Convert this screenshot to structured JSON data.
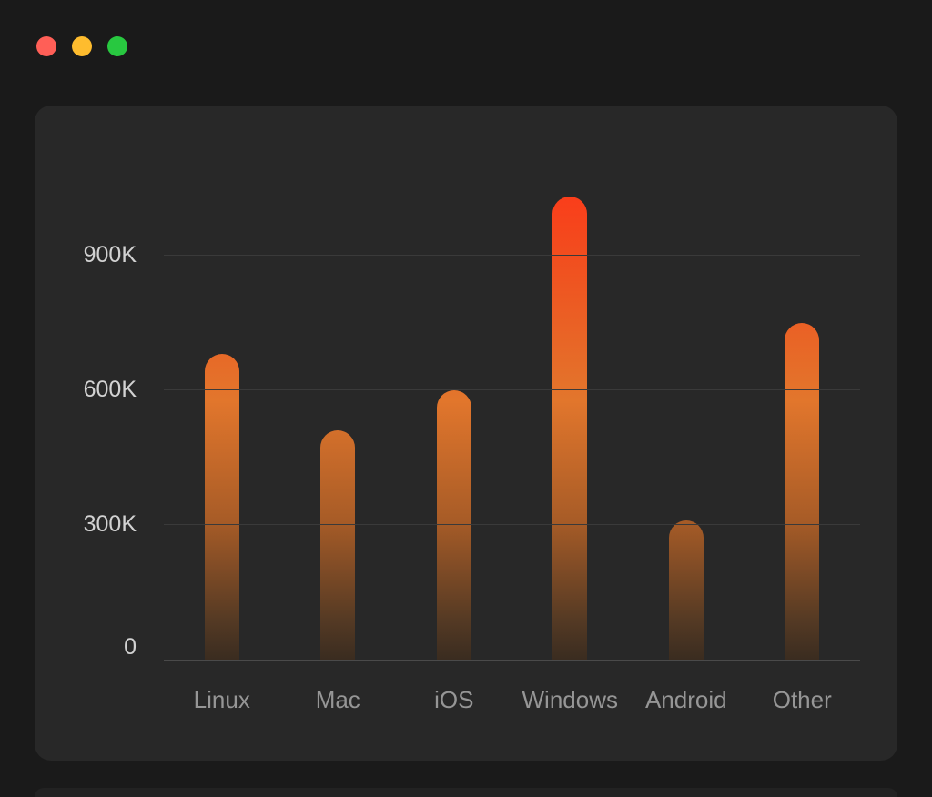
{
  "window": {
    "controls": [
      {
        "name": "close",
        "color": "#ff5f57"
      },
      {
        "name": "minimize",
        "color": "#febc2e"
      },
      {
        "name": "zoom",
        "color": "#28c840"
      }
    ]
  },
  "chart_data": {
    "type": "bar",
    "title": "",
    "xlabel": "",
    "ylabel": "",
    "categories": [
      "Linux",
      "Mac",
      "iOS",
      "Windows",
      "Android",
      "Other"
    ],
    "values": [
      680,
      510,
      600,
      1030,
      310,
      750
    ],
    "value_unit": "K",
    "ylim": [
      0,
      1110
    ],
    "y_ticks": [
      {
        "value": 0,
        "label": "0"
      },
      {
        "value": 300,
        "label": "300K"
      },
      {
        "value": 600,
        "label": "600K"
      },
      {
        "value": 900,
        "label": "900K"
      }
    ],
    "grid": true,
    "legend": false,
    "bar_gradient": [
      "#ff3418",
      "#e2762c",
      "#3a2c20"
    ]
  },
  "colors": {
    "page_bg": "#1a1a1a",
    "panel_bg": "#282828",
    "grid_line": "#3a3a3a",
    "axis_line": "#4a4a4a",
    "tick_label": "#d2d2d2",
    "category_label": "#969696"
  }
}
